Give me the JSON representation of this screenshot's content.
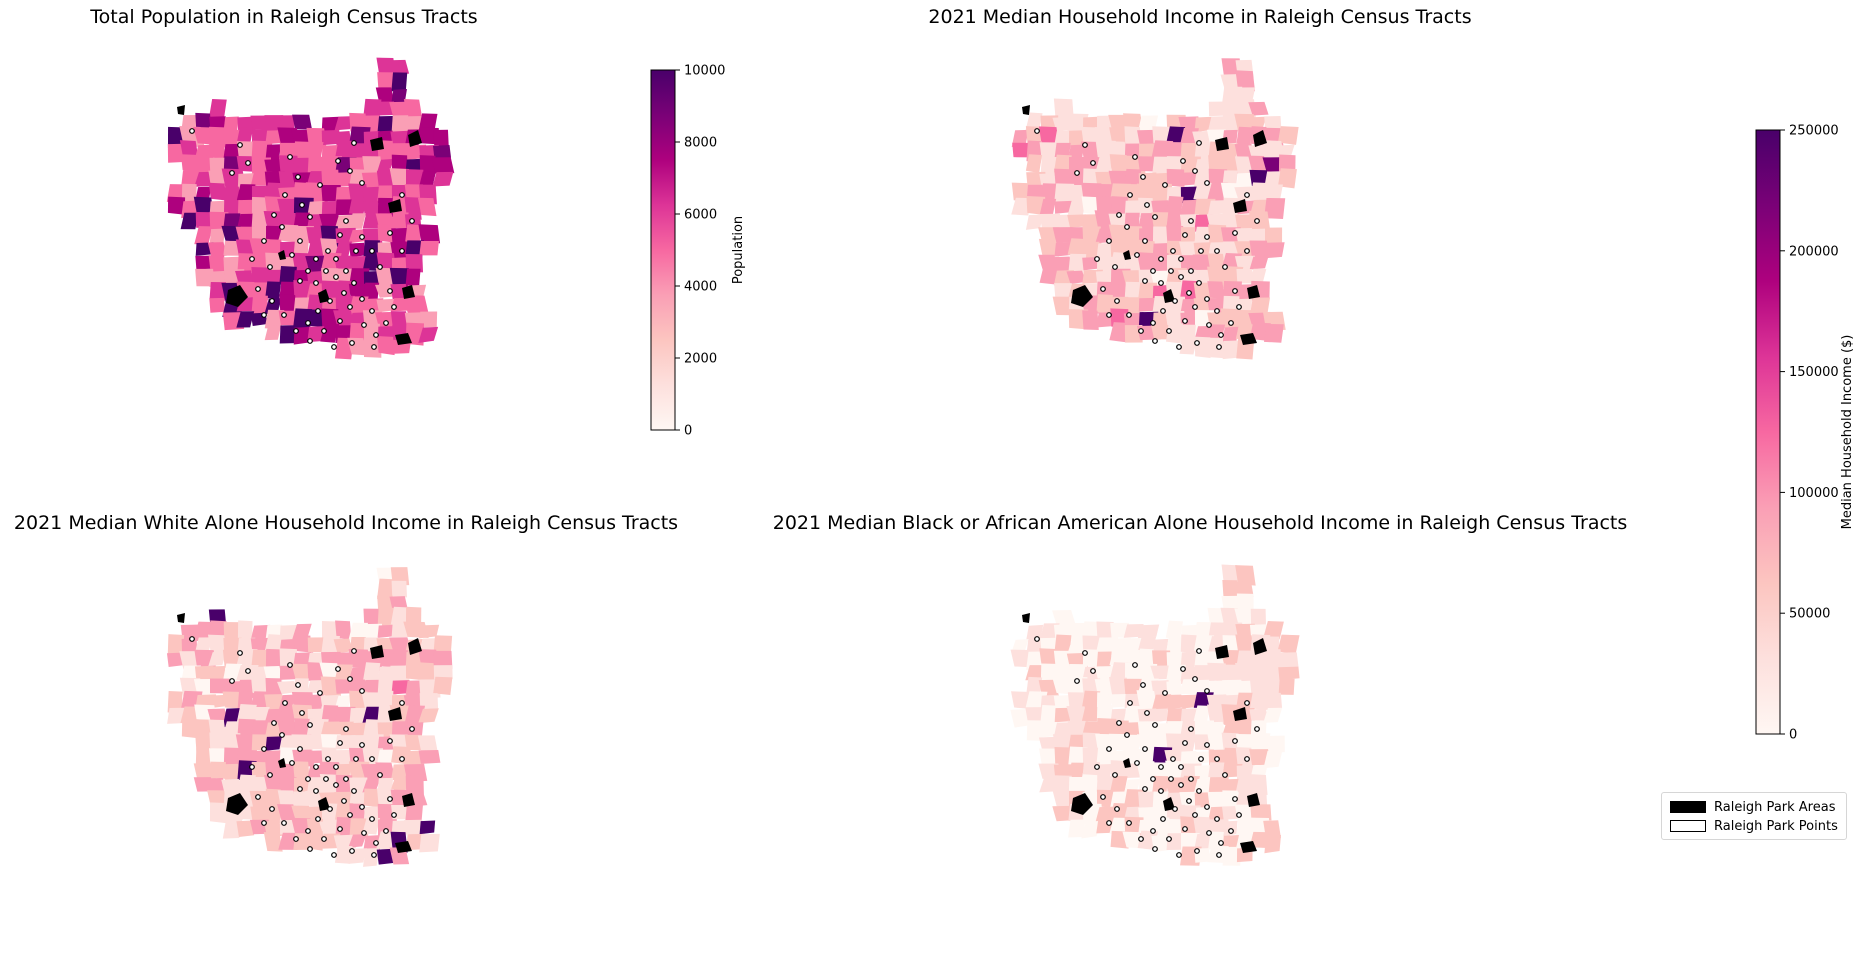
{
  "panels": [
    {
      "title": "Total Population in Raleigh Census Tracts",
      "colorbar": {
        "label": "Population",
        "vmin": 0,
        "vmax": 10000,
        "ticks": [
          "0",
          "2000",
          "4000",
          "6000",
          "8000",
          "10000"
        ]
      },
      "dominant_level": 0.55,
      "dark_regions": 0.12
    },
    {
      "title": "2021 Median Household Income in Raleigh Census Tracts",
      "dominant_level": 0.28,
      "dark_regions": 0.03
    },
    {
      "title": "2021 Median White Alone Household Income in Raleigh Census Tracts",
      "dominant_level": 0.27,
      "dark_regions": 0.03
    },
    {
      "title": "2021 Median Black or African American Alone Household Income in Raleigh Census Tracts",
      "dominant_level": 0.14,
      "dark_regions": 0.02
    }
  ],
  "shared_colorbar": {
    "label": "Median Household Income ($)",
    "vmin": 0,
    "vmax": 250000,
    "ticks": [
      "0",
      "50000",
      "100000",
      "150000",
      "200000",
      "250000"
    ]
  },
  "legend": {
    "areas_label": "Raleigh Park Areas",
    "points_label": "Raleigh Park Points"
  },
  "colors": {
    "cmap": [
      "#fff7f3",
      "#fde0dd",
      "#fcc5c0",
      "#fa9fb5",
      "#f768a1",
      "#dd3497",
      "#ae017e",
      "#7a0177",
      "#49006a"
    ],
    "park_fill": "#000000",
    "point_edge": "#000000"
  }
}
